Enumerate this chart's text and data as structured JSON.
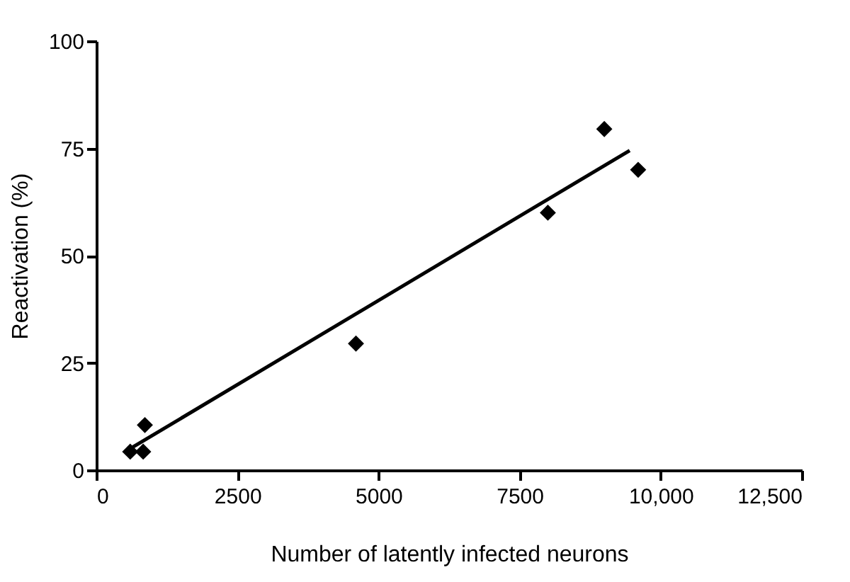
{
  "chart_data": {
    "type": "scatter",
    "xlabel": "Number of latently infected neurons",
    "ylabel": "Reactivation (%)",
    "xlim": [
      0,
      12500
    ],
    "xticks": [
      0,
      2500,
      5000,
      7500,
      {
        "value": 10000,
        "label": "10,000"
      },
      {
        "value": 12500,
        "label": "12,500"
      }
    ],
    "ylim": [
      0,
      100
    ],
    "yticks": [
      0,
      25,
      50,
      75,
      100
    ],
    "grid": false,
    "marker": "diamond",
    "series": [
      {
        "color": "#000000",
        "x": [
          600,
          830,
          860,
          4600,
          8000,
          9000,
          9600
        ],
        "values": [
          4.3,
          4.3,
          10.5,
          29.5,
          60,
          79.5,
          70
        ]
      },
      {
        "type": "line",
        "color": "#000000",
        "marker": "none",
        "line_style": "solid",
        "x": [
          600,
          9450
        ],
        "values": [
          5,
          74.5
        ]
      }
    ]
  }
}
